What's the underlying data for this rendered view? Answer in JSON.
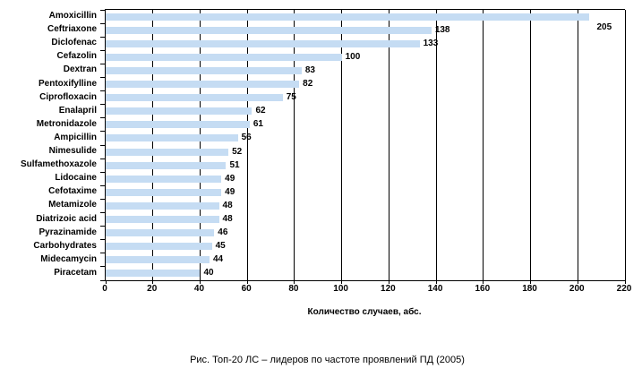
{
  "figure": {
    "caption": "Рис. Топ-20 ЛС – лидеров по частоте проявлений ПД (2005)"
  },
  "chart_data": {
    "type": "bar",
    "orientation": "horizontal",
    "title": "",
    "categories": [
      "Amoxicillin",
      "Ceftriaxone",
      "Diclofenac",
      "Cefazolin",
      "Dextran",
      "Pentoxifylline",
      "Ciprofloxacin",
      "Enalapril",
      "Metronidazole",
      "Ampicillin",
      "Nimesulide",
      "Sulfamethoxazole",
      "Lidocaine",
      "Cefotaxime",
      "Metamizole",
      "Diatrizoic acid",
      "Pyrazinamide",
      "Carbohydrates",
      "Midecamycin",
      "Piracetam"
    ],
    "values": [
      205,
      138,
      133,
      100,
      83,
      82,
      75,
      62,
      61,
      56,
      52,
      51,
      49,
      49,
      48,
      48,
      46,
      45,
      44,
      40
    ],
    "xlabel": "Количество случаев, абс.",
    "xlim": [
      0,
      220
    ],
    "xtick_step": 20,
    "xticks": [
      0,
      20,
      40,
      60,
      80,
      100,
      120,
      140,
      160,
      180,
      200,
      220
    ],
    "grid": "vertical",
    "legend": "none",
    "bar_color": "#c5dcf3",
    "value_labels": true
  }
}
